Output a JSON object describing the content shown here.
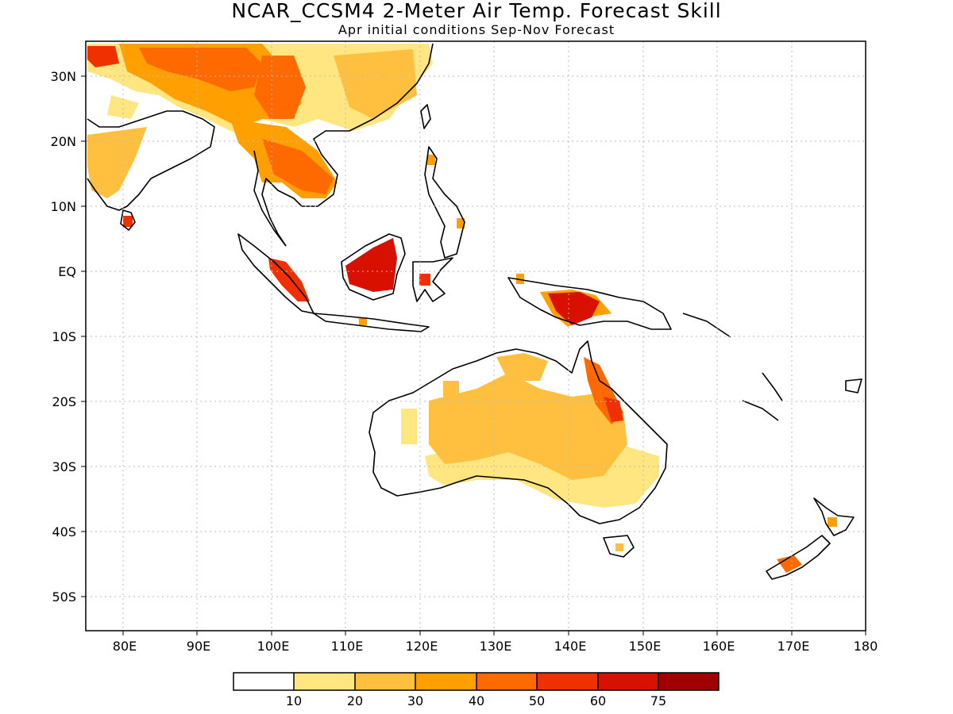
{
  "title": "NCAR_CCSM4 2-Meter Air Temp. Forecast Skill",
  "subtitle": "Apr initial conditions  Sep-Nov Forecast",
  "map": {
    "region": "Indo-Pacific / Maritime Continent / Australia",
    "lon_range": [
      75,
      180
    ],
    "lat_range": [
      -55,
      35
    ],
    "grid": true,
    "lon_labels": [
      "80E",
      "90E",
      "100E",
      "110E",
      "120E",
      "130E",
      "140E",
      "150E",
      "160E",
      "170E",
      "180"
    ],
    "lat_labels": [
      "30N",
      "20N",
      "10N",
      "EQ",
      "10S",
      "20S",
      "30S",
      "40S",
      "50S"
    ]
  },
  "colorbar": {
    "colors": [
      "#ffffff",
      "#ffe680",
      "#ffc040",
      "#ffa000",
      "#ff6a00",
      "#f03000",
      "#d81000",
      "#a00000"
    ],
    "labels": [
      "10",
      "20",
      "30",
      "40",
      "50",
      "60",
      "75"
    ]
  }
}
